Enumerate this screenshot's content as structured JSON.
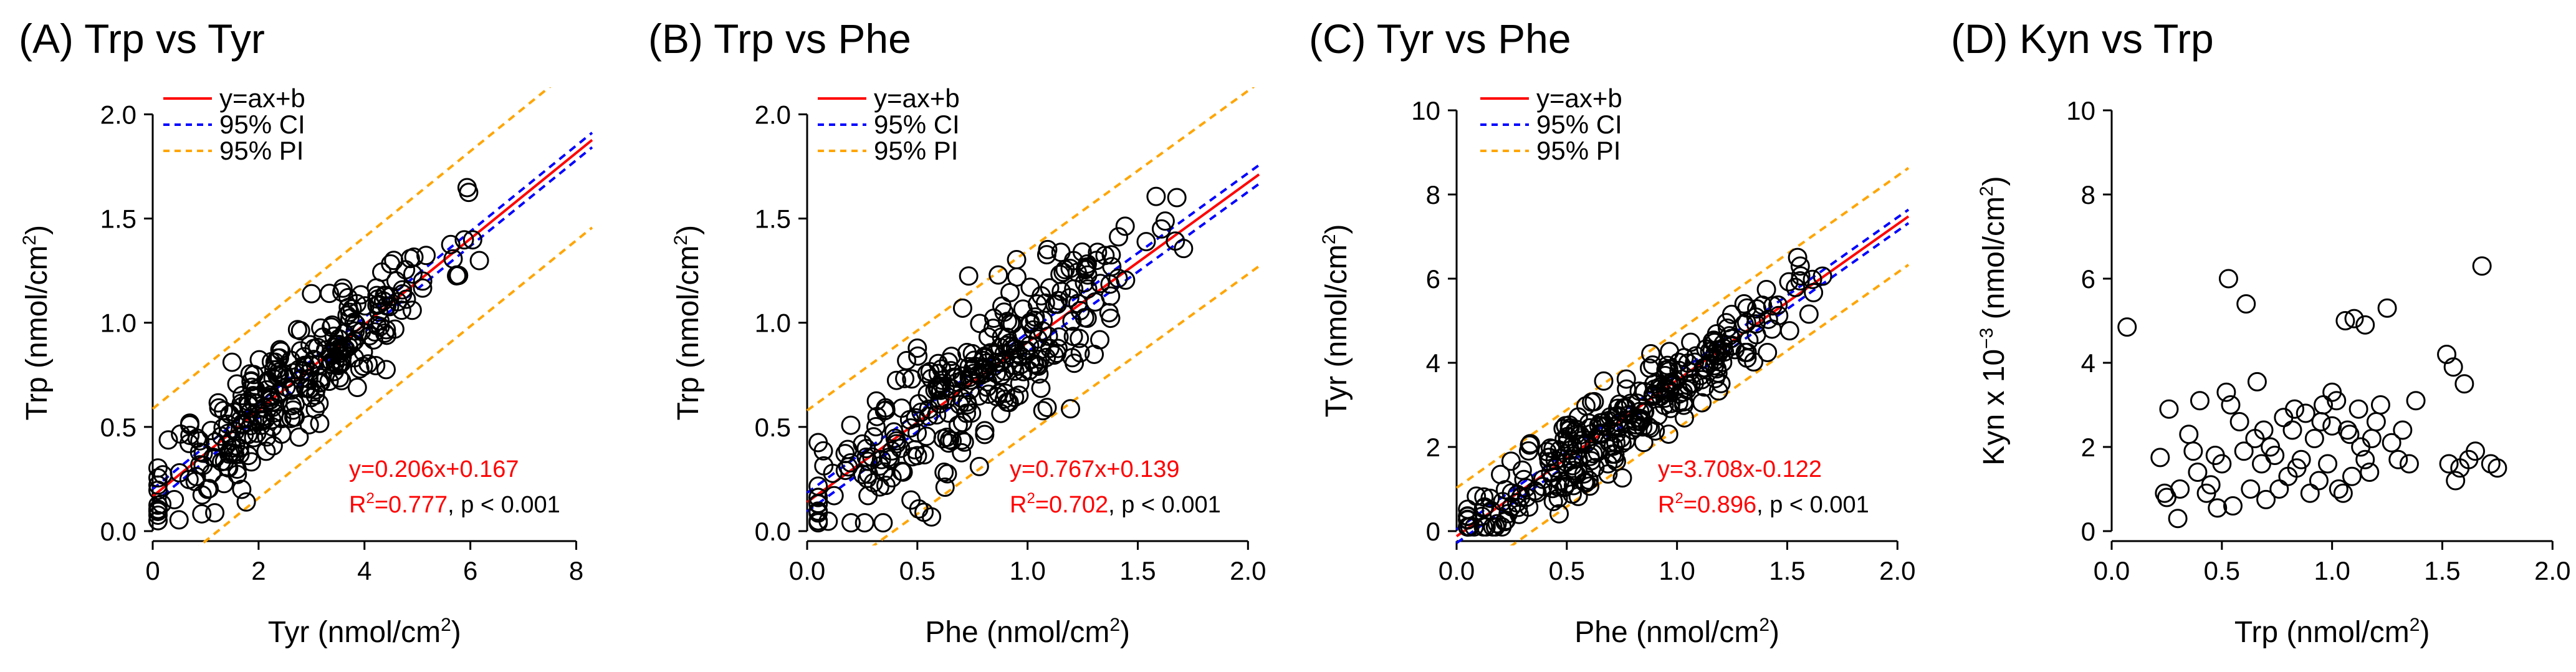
{
  "chart_data": [
    {
      "type": "scatter",
      "panel_label": "(A) Trp vs Tyr",
      "xlabel": "Tyr (nmol/cm2)",
      "ylabel": "Trp (nmol/cm2)",
      "xlim": [
        0,
        8.3
      ],
      "ylim": [
        0,
        2.1
      ],
      "xticks": [
        0,
        2,
        4,
        6,
        8
      ],
      "yticks": [
        0.0,
        0.5,
        1.0,
        1.5,
        2.0
      ],
      "xtick_labels": [
        "0",
        "2",
        "4",
        "6",
        "8"
      ],
      "ytick_labels": [
        "0.0",
        "0.5",
        "1.0",
        "1.5",
        "2.0"
      ],
      "legend": [
        "y=ax+b",
        "95% CI",
        "95% PI"
      ],
      "fit": {
        "slope": 0.206,
        "intercept": 0.167,
        "ci_half_width": 0.035,
        "pi_half_width": 0.42
      },
      "equation": "y=0.206x+0.167",
      "r2_label": "R",
      "r2_sup": "2",
      "r2_value": "=0.777",
      "p_text": ", p < 0.001",
      "n_points": 300,
      "x_center": 2.7,
      "x_spread": 1.4,
      "x_min": 0.1,
      "x_max": 8.0,
      "y_noise": 0.13,
      "y_clip": [
        0.05,
        1.8
      ],
      "seed": 11,
      "x_data_max": 8.3
    },
    {
      "type": "scatter",
      "panel_label": "(B) Trp vs Phe",
      "xlabel": "Phe (nmol/cm2)",
      "ylabel": "Trp (nmol/cm2)",
      "xlim": [
        0,
        2.05
      ],
      "ylim": [
        0,
        2.1
      ],
      "xticks": [
        0,
        0.5,
        1.0,
        1.5,
        2.0
      ],
      "yticks": [
        0.0,
        0.5,
        1.0,
        1.5,
        2.0
      ],
      "xtick_labels": [
        "0.0",
        "0.5",
        "1.0",
        "1.5",
        "2.0"
      ],
      "ytick_labels": [
        "0.0",
        "0.5",
        "1.0",
        "1.5",
        "2.0"
      ],
      "legend": [
        "y=ax+b",
        "95% CI",
        "95% PI"
      ],
      "fit": {
        "slope": 0.767,
        "intercept": 0.139,
        "ci_half_width": 0.045,
        "pi_half_width": 0.44
      },
      "equation": "y=0.767x+0.139",
      "r2_label": "R",
      "r2_sup": "2",
      "r2_value": "=0.702",
      "p_text": ", p < 0.001",
      "n_points": 300,
      "x_center": 0.75,
      "x_spread": 0.38,
      "x_min": 0.05,
      "x_max": 1.95,
      "y_noise": 0.17,
      "y_clip": [
        0.04,
        1.8
      ],
      "seed": 23,
      "x_data_max": 2.05
    },
    {
      "type": "scatter",
      "panel_label": "(C) Tyr vs Phe",
      "xlabel": "Phe (nmol/cm2)",
      "ylabel": "Tyr (nmol/cm2)",
      "xlim": [
        0,
        2.05
      ],
      "ylim": [
        0,
        10.4
      ],
      "xticks": [
        0,
        0.5,
        1.0,
        1.5,
        2.0
      ],
      "yticks": [
        0,
        2,
        4,
        6,
        8,
        10
      ],
      "xtick_labels": [
        "0.0",
        "0.5",
        "1.0",
        "1.5",
        "2.0"
      ],
      "ytick_labels": [
        "0",
        "2",
        "4",
        "6",
        "8",
        "10"
      ],
      "legend": [
        "y=ax+b",
        "95% CI",
        "95% PI"
      ],
      "fit": {
        "slope": 3.708,
        "intercept": -0.122,
        "ci_half_width": 0.16,
        "pi_half_width": 1.15
      },
      "equation": "y=3.708x-0.122",
      "r2_label": "R",
      "r2_sup": "2",
      "r2_value": "=0.896",
      "p_text": ", p < 0.001",
      "n_points": 300,
      "x_center": 0.75,
      "x_spread": 0.38,
      "x_min": 0.05,
      "x_max": 1.95,
      "y_noise": 0.5,
      "y_clip": [
        0.1,
        8.0
      ],
      "seed": 37,
      "x_data_max": 2.05
    },
    {
      "type": "scatter",
      "panel_label": "(D) Kyn vs Trp",
      "xlabel": "Trp (nmol/cm2)",
      "ylabel": "Kyn x 10-3 (nmol/cm2)",
      "xlim": [
        0,
        2.05
      ],
      "ylim": [
        0,
        10.4
      ],
      "xticks": [
        0,
        0.5,
        1.0,
        1.5,
        2.0
      ],
      "yticks": [
        0,
        2,
        4,
        6,
        8,
        10
      ],
      "xtick_labels": [
        "0.0",
        "0.5",
        "1.0",
        "1.5",
        "2.0"
      ],
      "ytick_labels": [
        "0",
        "2",
        "4",
        "6",
        "8",
        "10"
      ],
      "points": [
        [
          0.07,
          4.85
        ],
        [
          0.22,
          1.75
        ],
        [
          0.24,
          0.9
        ],
        [
          0.25,
          0.8
        ],
        [
          0.26,
          2.9
        ],
        [
          0.3,
          0.3
        ],
        [
          0.31,
          1.0
        ],
        [
          0.35,
          2.3
        ],
        [
          0.37,
          1.9
        ],
        [
          0.4,
          3.1
        ],
        [
          0.43,
          0.9
        ],
        [
          0.45,
          1.1
        ],
        [
          0.47,
          1.8
        ],
        [
          0.5,
          1.6
        ],
        [
          0.52,
          3.3
        ],
        [
          0.53,
          6.0
        ],
        [
          0.54,
          3.0
        ],
        [
          0.55,
          0.6
        ],
        [
          0.58,
          2.6
        ],
        [
          0.6,
          1.9
        ],
        [
          0.61,
          5.4
        ],
        [
          0.63,
          1.0
        ],
        [
          0.65,
          2.2
        ],
        [
          0.66,
          3.55
        ],
        [
          0.68,
          1.6
        ],
        [
          0.7,
          0.75
        ],
        [
          0.72,
          2.0
        ],
        [
          0.74,
          1.8
        ],
        [
          0.76,
          1.0
        ],
        [
          0.78,
          2.7
        ],
        [
          0.8,
          1.3
        ],
        [
          0.82,
          2.4
        ],
        [
          0.84,
          1.5
        ],
        [
          0.86,
          1.7
        ],
        [
          0.88,
          2.8
        ],
        [
          0.9,
          0.9
        ],
        [
          0.92,
          2.2
        ],
        [
          0.94,
          1.2
        ],
        [
          0.96,
          3.0
        ],
        [
          0.98,
          1.6
        ],
        [
          1.0,
          3.3
        ],
        [
          1.0,
          2.5
        ],
        [
          1.02,
          3.1
        ],
        [
          1.03,
          1.0
        ],
        [
          1.05,
          0.9
        ],
        [
          1.06,
          5.0
        ],
        [
          1.07,
          2.4
        ],
        [
          1.08,
          2.3
        ],
        [
          1.09,
          1.3
        ],
        [
          1.1,
          5.05
        ],
        [
          1.12,
          2.9
        ],
        [
          1.13,
          2.0
        ],
        [
          1.15,
          1.7
        ],
        [
          1.15,
          4.9
        ],
        [
          1.17,
          1.4
        ],
        [
          1.2,
          2.6
        ],
        [
          1.22,
          3.0
        ],
        [
          1.25,
          5.3
        ],
        [
          1.27,
          2.1
        ],
        [
          1.3,
          1.7
        ],
        [
          1.32,
          2.4
        ],
        [
          1.35,
          1.6
        ],
        [
          1.38,
          3.1
        ],
        [
          1.52,
          4.2
        ],
        [
          1.53,
          1.6
        ],
        [
          1.55,
          3.9
        ],
        [
          1.56,
          1.2
        ],
        [
          1.58,
          1.5
        ],
        [
          1.6,
          3.5
        ],
        [
          1.62,
          1.7
        ],
        [
          1.65,
          1.9
        ],
        [
          1.68,
          6.3
        ],
        [
          1.72,
          1.6
        ],
        [
          1.75,
          1.5
        ],
        [
          0.95,
          2.6
        ],
        [
          0.48,
          0.55
        ],
        [
          0.83,
          2.9
        ],
        [
          1.18,
          2.2
        ],
        [
          0.69,
          2.4
        ],
        [
          0.39,
          1.4
        ]
      ]
    }
  ]
}
